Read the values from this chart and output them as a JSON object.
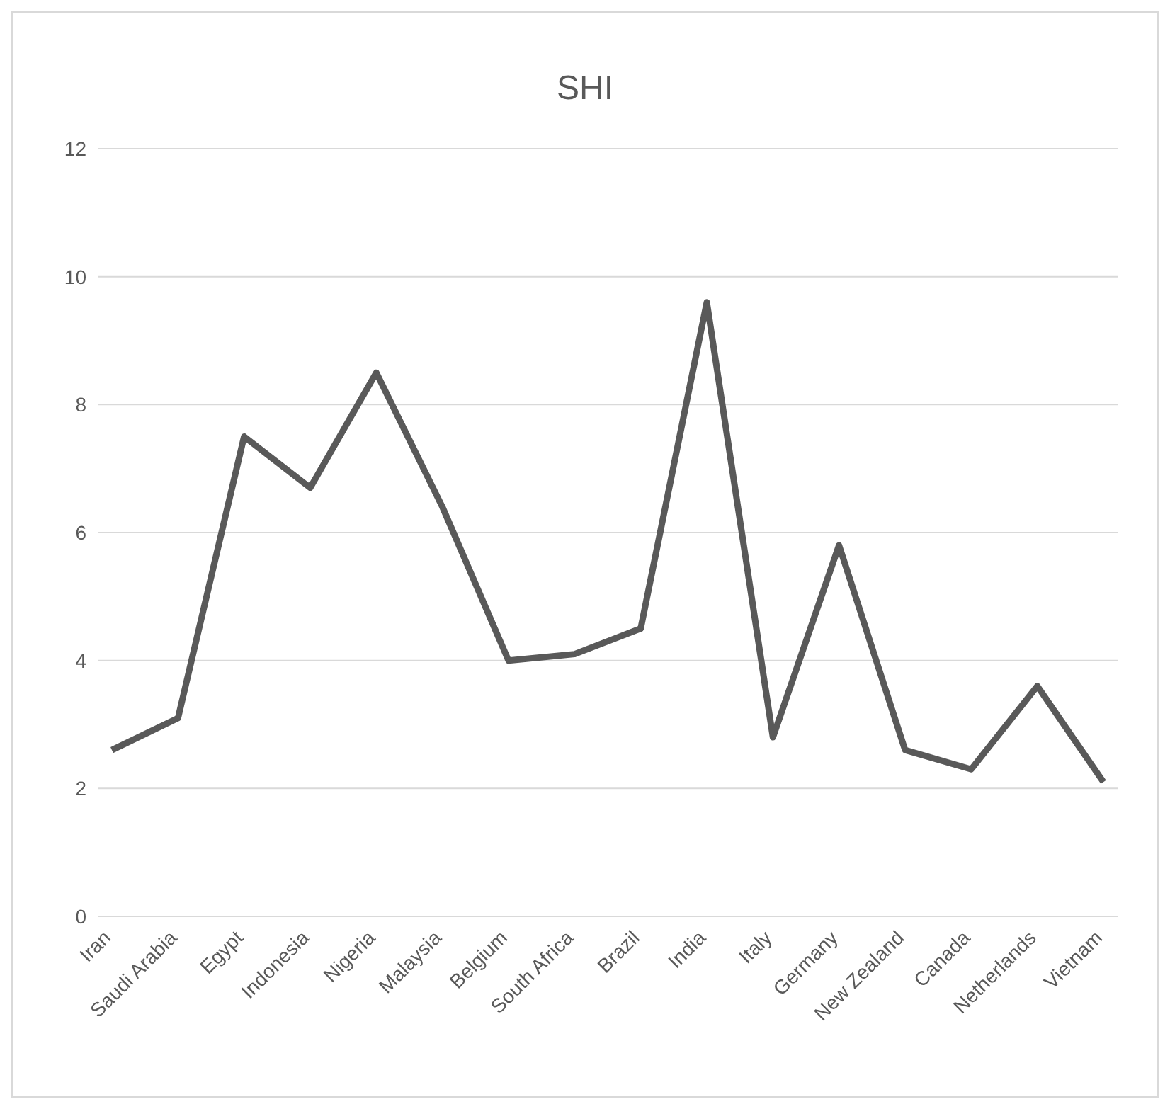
{
  "chart_data": {
    "type": "line",
    "title": "SHI",
    "categories": [
      "Iran",
      "Saudi Arabia",
      "Egypt",
      "Indonesia",
      "Nigeria",
      "Malaysia",
      "Belgium",
      "South Africa",
      "Brazil",
      "India",
      "Italy",
      "Germany",
      "New Zealand",
      "Canada",
      "Netherlands",
      "Vietnam"
    ],
    "series": [
      {
        "color": "#595959",
        "values": [
          2.6,
          3.1,
          7.5,
          6.7,
          8.5,
          6.4,
          4.0,
          4.1,
          4.5,
          9.6,
          2.8,
          5.8,
          2.6,
          2.3,
          3.6,
          2.1
        ]
      }
    ],
    "ylim": [
      0,
      12
    ],
    "yticks": [
      0,
      2,
      4,
      6,
      8,
      10,
      12
    ],
    "grid": "y",
    "legend": false,
    "marker": "none",
    "line_style": "solid"
  }
}
